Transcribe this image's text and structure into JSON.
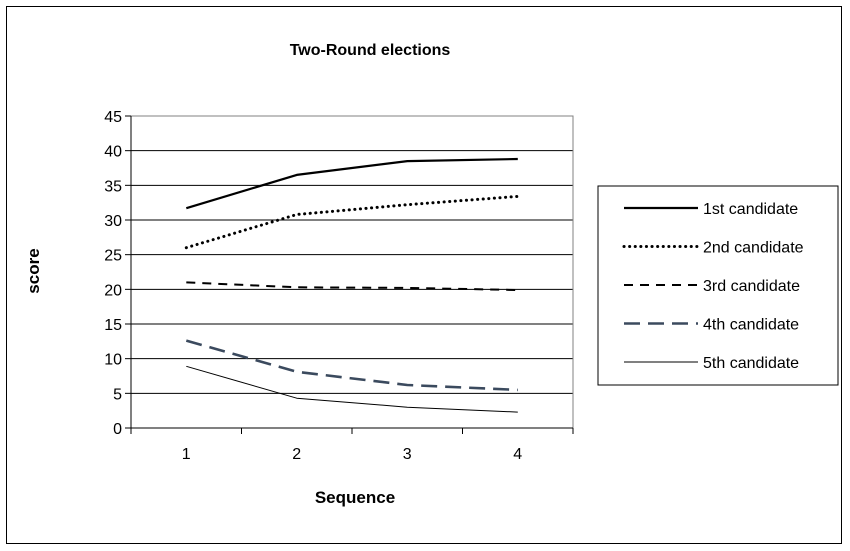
{
  "chart_data": {
    "type": "line",
    "title": "Two-Round elections",
    "xlabel": "Sequence",
    "ylabel": "score",
    "x": [
      1,
      2,
      3,
      4
    ],
    "ylim": [
      0,
      45
    ],
    "yticks": [
      0,
      5,
      10,
      15,
      20,
      25,
      30,
      35,
      40,
      45
    ],
    "grid": "horizontal",
    "legend_position": "right",
    "series": [
      {
        "name": "1st candidate",
        "values": [
          31.7,
          36.5,
          38.5,
          38.8
        ],
        "color": "#000000",
        "style": "solid-thick"
      },
      {
        "name": "2nd candidate",
        "values": [
          26.0,
          30.8,
          32.2,
          33.4
        ],
        "color": "#000000",
        "style": "dotted"
      },
      {
        "name": "3rd candidate",
        "values": [
          21.0,
          20.3,
          20.2,
          19.9
        ],
        "color": "#000000",
        "style": "dashed"
      },
      {
        "name": "4th candidate",
        "values": [
          12.6,
          8.1,
          6.2,
          5.5
        ],
        "color": "#3b4a5e",
        "style": "long-dashed"
      },
      {
        "name": "5th candidate",
        "values": [
          8.9,
          4.3,
          3.0,
          2.3
        ],
        "color": "#000000",
        "style": "solid-thin"
      }
    ]
  }
}
